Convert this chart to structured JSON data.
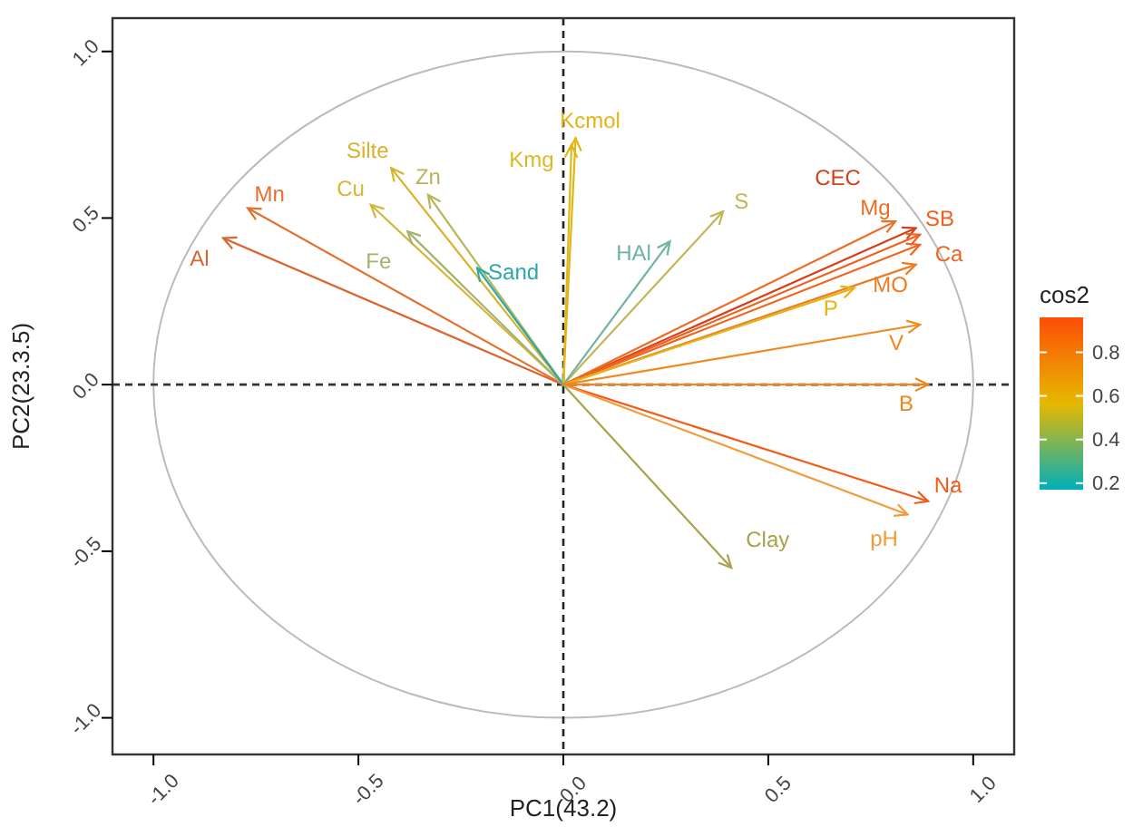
{
  "chart_data": {
    "type": "line",
    "xlabel": "PC1(43.2)",
    "ylabel": "PC2(23.3.5)",
    "clabel": "cos2",
    "xlim": [
      -1.1,
      1.1
    ],
    "ylim": [
      -1.11,
      1.1
    ],
    "xticks": [
      {
        "value": -1,
        "label": "-1.0"
      },
      {
        "value": -0.5,
        "label": "-0.5"
      },
      {
        "value": 0,
        "label": "0.0"
      },
      {
        "value": 0.5,
        "label": "0.5"
      },
      {
        "value": 1,
        "label": "1.0"
      }
    ],
    "yticks": [
      {
        "value": -1,
        "label": "-1.0"
      },
      {
        "value": -0.5,
        "label": "-0.5"
      },
      {
        "value": 0,
        "label": "0.0"
      },
      {
        "value": 0.5,
        "label": "0.5"
      },
      {
        "value": 1,
        "label": "1.0"
      }
    ],
    "clim": [
      0.17,
      0.96
    ],
    "cticks": [
      0.2,
      0.4,
      0.6,
      0.8
    ],
    "ref_lines": [
      {
        "axis": "x",
        "value": 0,
        "line_style": "dashed",
        "color": "#222222"
      },
      {
        "axis": "y",
        "value": 0,
        "line_style": "dashed",
        "color": "#333333"
      }
    ],
    "series": [
      {
        "name": "Al",
        "color": "#d9652f",
        "x": [
          0,
          -0.83
        ],
        "values": [
          0,
          0.44
        ]
      },
      {
        "name": "Mn",
        "color": "#e3702f",
        "x": [
          0,
          -0.77
        ],
        "values": [
          0,
          0.53
        ]
      },
      {
        "name": "Silte",
        "color": "#d9b12b",
        "x": [
          0,
          -0.42
        ],
        "values": [
          0,
          0.65
        ]
      },
      {
        "name": "Cu",
        "color": "#d3b63a",
        "x": [
          0,
          -0.47
        ],
        "values": [
          0,
          0.54
        ]
      },
      {
        "name": "Zn",
        "color": "#b8b45a",
        "x": [
          0,
          -0.33
        ],
        "values": [
          0,
          0.57
        ]
      },
      {
        "name": "Fe",
        "color": "#a8b070",
        "x": [
          0,
          -0.38
        ],
        "values": [
          0,
          0.46
        ]
      },
      {
        "name": "Sand",
        "color": "#2aa9a8",
        "x": [
          0,
          -0.21
        ],
        "values": [
          0,
          0.35
        ]
      },
      {
        "name": "Kmg",
        "color": "#ddb81f",
        "x": [
          0,
          0.02
        ],
        "values": [
          0,
          0.72
        ]
      },
      {
        "name": "Kcmol",
        "color": "#e4b512",
        "x": [
          0,
          0.03
        ],
        "values": [
          0,
          0.74
        ]
      },
      {
        "name": "S",
        "color": "#c4b658",
        "x": [
          0,
          0.39
        ],
        "values": [
          0,
          0.52
        ]
      },
      {
        "name": "HAl",
        "color": "#6eb3a3",
        "x": [
          0,
          0.26
        ],
        "values": [
          0,
          0.43
        ]
      },
      {
        "name": "CEC",
        "color": "#d4401a",
        "x": [
          0,
          0.86
        ],
        "values": [
          0,
          0.47
        ]
      },
      {
        "name": "Mg",
        "color": "#ec6d24",
        "x": [
          0,
          0.81
        ],
        "values": [
          0,
          0.49
        ]
      },
      {
        "name": "SB",
        "color": "#f0601c",
        "x": [
          0,
          0.87
        ],
        "values": [
          0,
          0.45
        ]
      },
      {
        "name": "Ca",
        "color": "#ef6520",
        "x": [
          0,
          0.87
        ],
        "values": [
          0,
          0.42
        ]
      },
      {
        "name": "MO",
        "color": "#ee7a22",
        "x": [
          0,
          0.86
        ],
        "values": [
          0,
          0.36
        ]
      },
      {
        "name": "P",
        "color": "#e5b314",
        "x": [
          0,
          0.71
        ],
        "values": [
          0,
          0.29
        ]
      },
      {
        "name": "V",
        "color": "#ee8a20",
        "x": [
          0,
          0.87
        ],
        "values": [
          0,
          0.18
        ]
      },
      {
        "name": "B",
        "color": "#f0851c",
        "x": [
          0,
          0.89
        ],
        "values": [
          0,
          0.0
        ]
      },
      {
        "name": "Na",
        "color": "#f25c1a",
        "x": [
          0,
          0.89
        ],
        "values": [
          0,
          -0.35
        ]
      },
      {
        "name": "pH",
        "color": "#f39a3a",
        "x": [
          0,
          0.84
        ],
        "values": [
          0,
          -0.39
        ]
      },
      {
        "name": "Clay",
        "color": "#a9a24a",
        "x": [
          0,
          0.41
        ],
        "values": [
          0,
          -0.55
        ]
      }
    ]
  }
}
